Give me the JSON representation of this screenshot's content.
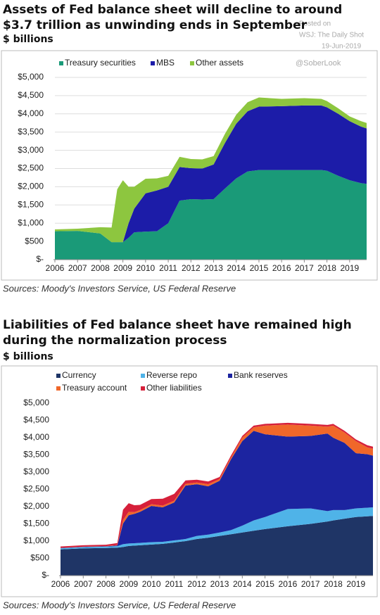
{
  "chart_data": [
    {
      "type": "stacked_area",
      "title": "Assets of Fed balance sheet will decline to around $3.7 trillion as unwinding ends in September",
      "subtitle": "$ billions",
      "annotations": [
        "Posted on",
        "WSJ: The Daily Shot",
        "19-Jun-2019",
        "@SoberLook"
      ],
      "source": "Sources: Moody's Investors Service, US Federal Reserve",
      "legend": "top-left",
      "grid": true,
      "x": [
        2006,
        2007,
        2008,
        2008.5,
        2008.75,
        2009,
        2009.25,
        2009.5,
        2010,
        2010.5,
        2011,
        2011.5,
        2012,
        2012.5,
        2013,
        2013.5,
        2014,
        2014.5,
        2015,
        2016,
        2017,
        2017.75,
        2018,
        2018.5,
        2019,
        2019.5,
        2019.75
      ],
      "xlim": [
        2006,
        2019.75
      ],
      "xticks": [
        2006,
        2007,
        2008,
        2009,
        2010,
        2011,
        2012,
        2013,
        2014,
        2015,
        2016,
        2017,
        2018,
        2019
      ],
      "ylim": [
        0,
        5000
      ],
      "yticks": [
        {
          "value": 0,
          "label": "$-"
        },
        {
          "value": 500,
          "label": "$500"
        },
        {
          "value": 1000,
          "label": "$1,000"
        },
        {
          "value": 1500,
          "label": "$1,500"
        },
        {
          "value": 2000,
          "label": "$2,000"
        },
        {
          "value": 2500,
          "label": "$2,500"
        },
        {
          "value": 3000,
          "label": "$3,000"
        },
        {
          "value": 3500,
          "label": "$3,500"
        },
        {
          "value": 4000,
          "label": "$4,000"
        },
        {
          "value": 4500,
          "label": "$4,500"
        },
        {
          "value": 5000,
          "label": "$5,000"
        }
      ],
      "series": [
        {
          "name": "Treasury securities",
          "color": "#1a9a78",
          "values": [
            780,
            790,
            720,
            480,
            480,
            480,
            600,
            750,
            770,
            780,
            1000,
            1620,
            1660,
            1650,
            1660,
            1950,
            2230,
            2420,
            2460,
            2460,
            2460,
            2460,
            2440,
            2300,
            2180,
            2100,
            2080
          ]
        },
        {
          "name": "MBS",
          "color": "#1c1ca8",
          "values": [
            0,
            0,
            0,
            0,
            0,
            0,
            400,
            650,
            1050,
            1120,
            1000,
            920,
            850,
            850,
            950,
            1250,
            1500,
            1650,
            1740,
            1750,
            1770,
            1770,
            1740,
            1700,
            1620,
            1550,
            1520
          ]
        },
        {
          "name": "Other assets",
          "color": "#8dc63f",
          "values": [
            50,
            60,
            170,
            400,
            1450,
            1700,
            1000,
            600,
            400,
            330,
            300,
            280,
            250,
            250,
            230,
            250,
            250,
            250,
            250,
            200,
            200,
            180,
            170,
            150,
            130,
            150,
            150
          ]
        }
      ]
    },
    {
      "type": "stacked_area",
      "title": "Liabilities of Fed balance sheet have remained high during the normalization process",
      "subtitle": "$ billions",
      "source": "Sources: Moody's Investors Service, US Federal Reserve",
      "legend": "top-left",
      "grid": false,
      "x": [
        2006,
        2007,
        2008,
        2008.5,
        2008.75,
        2009,
        2009.25,
        2009.5,
        2010,
        2010.5,
        2011,
        2011.5,
        2012,
        2012.5,
        2013,
        2013.5,
        2014,
        2014.5,
        2015,
        2016,
        2017,
        2017.75,
        2018,
        2018.5,
        2019,
        2019.5,
        2019.75
      ],
      "xlim": [
        2006,
        2019.75
      ],
      "xticks": [
        2006,
        2007,
        2008,
        2009,
        2010,
        2011,
        2012,
        2013,
        2014,
        2015,
        2016,
        2017,
        2018,
        2019
      ],
      "ylim": [
        0,
        5000
      ],
      "yticks": [
        {
          "value": 0,
          "label": "$-"
        },
        {
          "value": 500,
          "label": "$500"
        },
        {
          "value": 1000,
          "label": "$1,000"
        },
        {
          "value": 1500,
          "label": "$1,500"
        },
        {
          "value": 2000,
          "label": "$2,000"
        },
        {
          "value": 2500,
          "label": "$2,500"
        },
        {
          "value": 3000,
          "label": "$3,000"
        },
        {
          "value": 3500,
          "label": "$3,500"
        },
        {
          "value": 4000,
          "label": "$4,000"
        },
        {
          "value": 4500,
          "label": "$4,500"
        },
        {
          "value": 5000,
          "label": "$5,000"
        }
      ],
      "series": [
        {
          "name": "Currency",
          "color": "#1f3566",
          "values": [
            760,
            790,
            800,
            810,
            830,
            860,
            870,
            880,
            900,
            920,
            960,
            1000,
            1060,
            1100,
            1150,
            1200,
            1250,
            1300,
            1350,
            1430,
            1500,
            1570,
            1600,
            1650,
            1700,
            1720,
            1730
          ]
        },
        {
          "name": "Reverse repo",
          "color": "#4fb3e8",
          "values": [
            30,
            35,
            40,
            45,
            80,
            70,
            70,
            70,
            70,
            60,
            60,
            60,
            90,
            90,
            100,
            120,
            200,
            300,
            350,
            500,
            450,
            300,
            300,
            250,
            250,
            250,
            250
          ]
        },
        {
          "name": "Bank reserves",
          "color": "#1c24a0",
          "values": [
            10,
            10,
            10,
            20,
            600,
            820,
            850,
            900,
            1050,
            1000,
            1100,
            1550,
            1500,
            1400,
            1500,
            2050,
            2450,
            2600,
            2400,
            2100,
            2100,
            2250,
            2100,
            1950,
            1600,
            1550,
            1500
          ]
        },
        {
          "name": "Treasury account",
          "color": "#f0672a",
          "values": [
            5,
            5,
            5,
            10,
            100,
            100,
            50,
            50,
            50,
            50,
            50,
            50,
            50,
            60,
            50,
            50,
            100,
            100,
            250,
            350,
            300,
            200,
            350,
            300,
            350,
            200,
            200
          ]
        },
        {
          "name": "Other liabilities",
          "color": "#d6203a",
          "values": [
            40,
            40,
            40,
            60,
            300,
            250,
            200,
            150,
            150,
            200,
            200,
            100,
            80,
            80,
            60,
            60,
            50,
            50,
            50,
            50,
            50,
            50,
            50,
            50,
            50,
            60,
            60
          ]
        }
      ]
    }
  ]
}
